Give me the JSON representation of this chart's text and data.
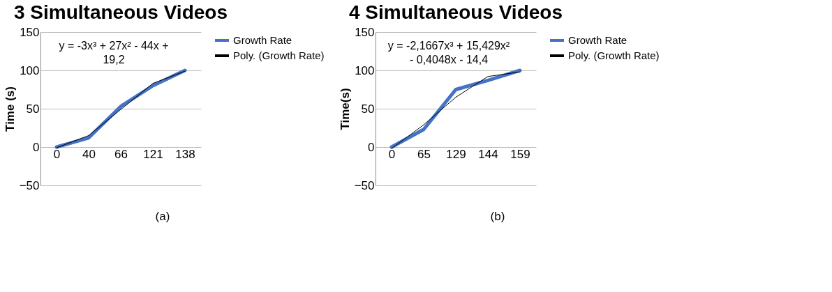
{
  "chart_data": [
    {
      "type": "line",
      "title": "3 Simultaneous Videos",
      "ylabel": "Time (s)",
      "categories": [
        "0",
        "40",
        "66",
        "121",
        "138"
      ],
      "ylim": [
        -50,
        150
      ],
      "yticks": [
        -50,
        0,
        50,
        100,
        150
      ],
      "grid": "y",
      "legend": "right",
      "series": [
        {
          "name": "Growth Rate",
          "color": "#4472c4",
          "values": [
            0,
            12,
            53,
            80,
            100
          ]
        },
        {
          "name": "Poly. (Growth Rate)",
          "color": "#000000",
          "values": [
            -1,
            15,
            49,
            83,
            99
          ]
        }
      ],
      "annotations": [
        "y = -3x³ + 27x² - 44x + 19,2",
        "(a)"
      ]
    },
    {
      "type": "line",
      "title": "4 Simultaneous Videos",
      "ylabel": "Time(s)",
      "categories": [
        "0",
        "65",
        "129",
        "144",
        "159"
      ],
      "ylim": [
        -50,
        150
      ],
      "yticks": [
        -50,
        0,
        50,
        100,
        150
      ],
      "grid": "y",
      "legend": "right",
      "series": [
        {
          "name": "Growth Rate",
          "color": "#4472c4",
          "values": [
            0,
            23,
            75,
            87,
            100
          ]
        },
        {
          "name": "Poly. (Growth Rate)",
          "color": "#000000",
          "values": [
            -2,
            29,
            65,
            92,
            98
          ]
        }
      ],
      "annotations": [
        "y = -2,1667x³ + 15,429x² - 0,4048x - 14,4",
        "(b)"
      ]
    }
  ]
}
